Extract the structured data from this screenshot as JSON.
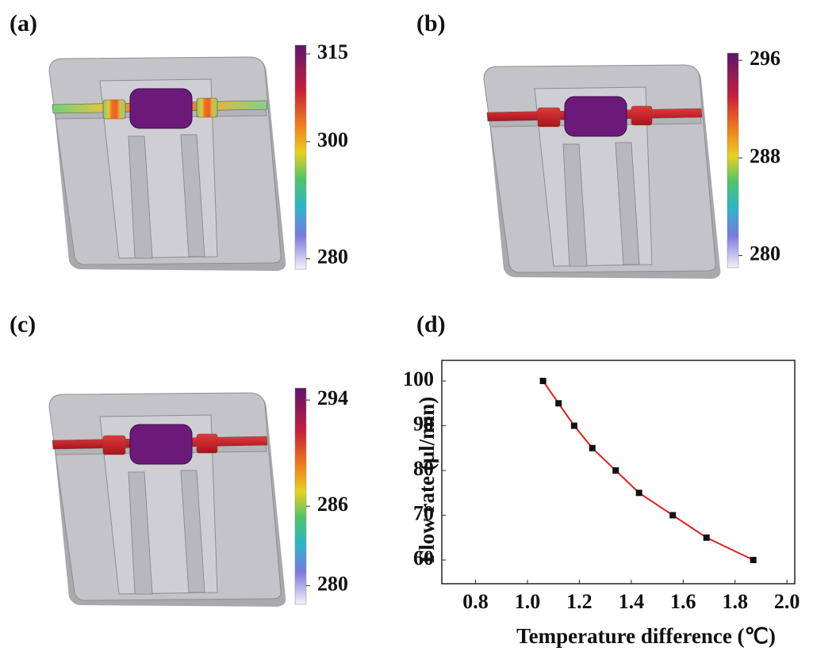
{
  "chart_data": [
    {
      "type": "colorbar",
      "panel": "(a)",
      "vlim": [
        278.2,
        316.5
      ],
      "ticks": [
        315,
        300,
        280
      ]
    },
    {
      "type": "colorbar",
      "panel": "(b)",
      "vlim": [
        279,
        296.6
      ],
      "ticks": [
        296,
        288,
        280
      ]
    },
    {
      "type": "colorbar",
      "panel": "(c)",
      "vlim": [
        278.6,
        294.9
      ],
      "ticks": [
        294,
        286,
        280
      ]
    },
    {
      "type": "line",
      "panel": "(d)",
      "xlabel": "Temperature difference (℃)",
      "ylabel": "Flow rate (µl/min)",
      "x": [
        1.06,
        1.12,
        1.18,
        1.25,
        1.34,
        1.43,
        1.56,
        1.69,
        1.87
      ],
      "values": [
        100,
        95,
        90,
        85,
        80,
        75,
        70,
        65,
        60
      ],
      "color": "#e0201b",
      "marker_color": "#111111",
      "xlim": [
        0.67,
        2.03
      ],
      "ylim": [
        54.7,
        104.6
      ],
      "xticks": [
        0.8,
        {
          "value": 1,
          "label": "1.0"
        },
        1.2,
        1.4,
        1.6,
        1.8,
        {
          "value": 2,
          "label": "2.0"
        }
      ],
      "yticks": [
        60,
        70,
        80,
        90,
        100
      ]
    }
  ]
}
